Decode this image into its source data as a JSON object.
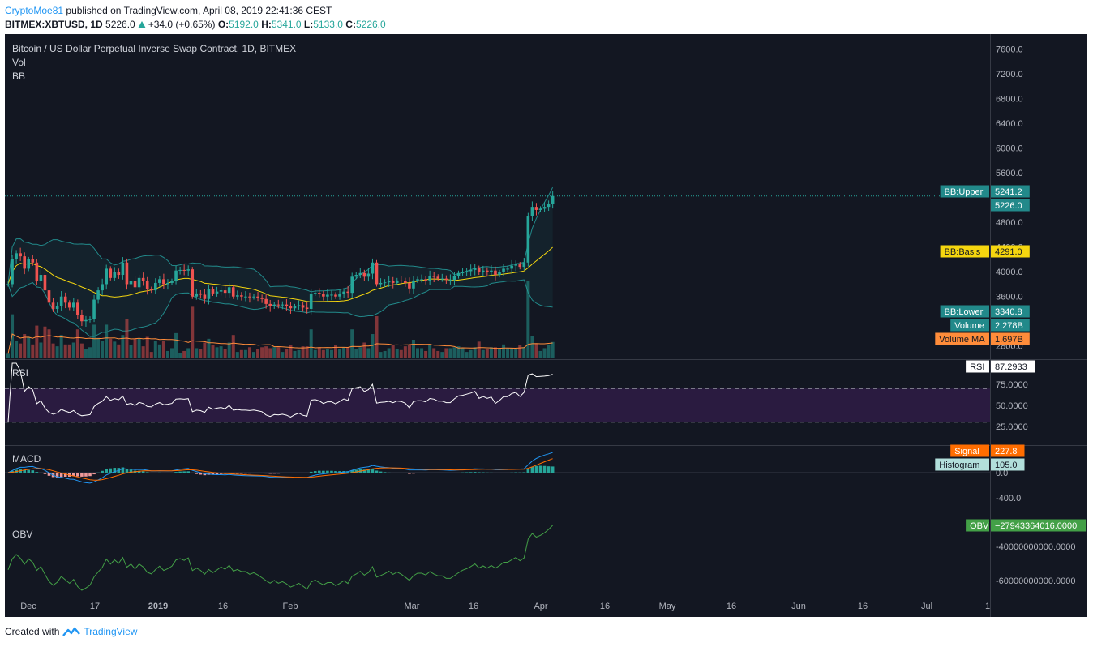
{
  "header": {
    "author": "CryptoMoe81",
    "published_text": "published on TradingView.com, April 08, 2019 22:41:36 CEST",
    "symbol": "BITMEX:XBTUSD, 1D",
    "last": "5226.0",
    "change": "+34.0 (+0.65%)",
    "o_label": "O:",
    "o": "5192.0",
    "h_label": "H:",
    "h": "5341.0",
    "l_label": "L:",
    "l": "5133.0",
    "c_label": "C:",
    "c": "5226.0"
  },
  "legend": {
    "title": "Bitcoin / US Dollar Perpetual Inverse Swap Contract, 1D, BITMEX",
    "vol": "Vol",
    "bb": "BB"
  },
  "panes": {
    "rsi": "RSI",
    "macd": "MACD",
    "obv": "OBV"
  },
  "price_axis": {
    "ticks": [
      "7600.0",
      "7200.0",
      "6800.0",
      "6400.0",
      "6000.0",
      "5600.0",
      "4800.0",
      "4400.0",
      "4000.0",
      "3600.0",
      "2800.0"
    ]
  },
  "rsi_axis": {
    "ticks": [
      "75.0000",
      "50.0000",
      "25.0000"
    ]
  },
  "macd_axis": {
    "ticks": [
      "0.0",
      "-400.0"
    ]
  },
  "obv_axis": {
    "ticks": [
      "-40000000000.0000",
      "-60000000000.0000"
    ]
  },
  "time_axis": {
    "ticks": [
      "Dec",
      "17",
      "2019",
      "16",
      "Feb",
      "Mar",
      "16",
      "Apr",
      "16",
      "May",
      "16",
      "Jun",
      "16",
      "Jul",
      "1"
    ]
  },
  "badges": {
    "bb_upper_label": "BB:Upper",
    "bb_upper": "5241.2",
    "last_price": "5226.0",
    "bb_basis_label": "BB:Basis",
    "bb_basis": "4291.0",
    "bb_lower_label": "BB:Lower",
    "bb_lower": "3340.8",
    "volume_label": "Volume",
    "volume": "2.278B",
    "volume_ma_label": "Volume MA",
    "volume_ma": "1.697B",
    "rsi_label": "RSI",
    "rsi": "87.2933",
    "signal_label": "Signal",
    "signal": "227.8",
    "histogram_label": "Histogram",
    "histogram": "105.0",
    "obv_label": "OBV",
    "obv": "−27943364016.0000"
  },
  "footer": {
    "created_with": "Created with",
    "brand": "TradingView"
  },
  "colors": {
    "background": "#131722",
    "up": "#26a69a",
    "down": "#ef5350",
    "bb_band": "#22898a",
    "bb_basis": "#f5d60f",
    "volume_ma": "#ff8c3a",
    "rsi_line": "#ffffff",
    "rsi_band": "#2a1b40",
    "macd_line": "#2196f3",
    "signal_line": "#ff6d00",
    "obv_line": "#43a047"
  },
  "chart_data": {
    "type": "candlestick",
    "symbol": "BITMEX:XBTUSD",
    "interval": "1D",
    "dates": [
      "2018-11-26",
      "2018-11-27",
      "2018-11-28",
      "2018-11-29",
      "2018-11-30",
      "2018-12-01",
      "2018-12-02",
      "2018-12-03",
      "2018-12-04",
      "2018-12-05",
      "2018-12-06",
      "2018-12-07",
      "2018-12-08",
      "2018-12-09",
      "2018-12-10",
      "2018-12-11",
      "2018-12-12",
      "2018-12-13",
      "2018-12-14",
      "2018-12-15",
      "2018-12-16",
      "2018-12-17",
      "2018-12-18",
      "2018-12-19",
      "2018-12-20",
      "2018-12-21",
      "2018-12-22",
      "2018-12-23",
      "2018-12-24",
      "2018-12-25",
      "2018-12-26",
      "2018-12-27",
      "2018-12-28",
      "2018-12-29",
      "2018-12-30",
      "2018-12-31",
      "2019-01-01",
      "2019-01-02",
      "2019-01-03",
      "2019-01-04",
      "2019-01-05",
      "2019-01-06",
      "2019-01-07",
      "2019-01-08",
      "2019-01-09",
      "2019-01-10",
      "2019-01-11",
      "2019-01-12",
      "2019-01-13",
      "2019-01-14",
      "2019-01-15",
      "2019-01-16",
      "2019-01-17",
      "2019-01-18",
      "2019-01-19",
      "2019-01-20",
      "2019-01-21",
      "2019-01-22",
      "2019-01-23",
      "2019-01-24",
      "2019-01-25",
      "2019-01-26",
      "2019-01-27",
      "2019-01-28",
      "2019-01-29",
      "2019-01-30",
      "2019-01-31",
      "2019-02-01",
      "2019-02-02",
      "2019-02-03",
      "2019-02-04",
      "2019-02-05",
      "2019-02-06",
      "2019-02-07",
      "2019-02-08",
      "2019-02-09",
      "2019-02-10",
      "2019-02-11",
      "2019-02-12",
      "2019-02-13",
      "2019-02-14",
      "2019-02-15",
      "2019-02-16",
      "2019-02-17",
      "2019-02-18",
      "2019-02-19",
      "2019-02-20",
      "2019-02-21",
      "2019-02-22",
      "2019-02-23",
      "2019-02-24",
      "2019-02-25",
      "2019-02-26",
      "2019-02-27",
      "2019-02-28",
      "2019-03-01",
      "2019-03-02",
      "2019-03-03",
      "2019-03-04",
      "2019-03-05",
      "2019-03-06",
      "2019-03-07",
      "2019-03-08",
      "2019-03-09",
      "2019-03-10",
      "2019-03-11",
      "2019-03-12",
      "2019-03-13",
      "2019-03-14",
      "2019-03-15",
      "2019-03-16",
      "2019-03-17",
      "2019-03-18",
      "2019-03-19",
      "2019-03-20",
      "2019-03-21",
      "2019-03-22",
      "2019-03-23",
      "2019-03-24",
      "2019-03-25",
      "2019-03-26",
      "2019-03-27",
      "2019-03-28",
      "2019-03-29",
      "2019-03-30",
      "2019-03-31",
      "2019-04-01",
      "2019-04-02",
      "2019-04-03",
      "2019-04-04",
      "2019-04-05",
      "2019-04-06",
      "2019-04-07",
      "2019-04-08"
    ],
    "close": [
      3800,
      4200,
      4300,
      4250,
      4050,
      4200,
      4150,
      3850,
      3950,
      3700,
      3500,
      3400,
      3450,
      3600,
      3500,
      3420,
      3500,
      3300,
      3200,
      3220,
      3240,
      3550,
      3700,
      3800,
      4050,
      3900,
      4000,
      3950,
      4150,
      3800,
      3850,
      3750,
      3900,
      3850,
      3720,
      3700,
      3820,
      3880,
      3800,
      3820,
      3850,
      4020,
      4030,
      4020,
      4040,
      3600,
      3650,
      3630,
      3560,
      3720,
      3650,
      3680,
      3700,
      3660,
      3750,
      3600,
      3620,
      3600,
      3600,
      3590,
      3600,
      3580,
      3560,
      3480,
      3440,
      3470,
      3460,
      3470,
      3450,
      3410,
      3440,
      3460,
      3420,
      3400,
      3650,
      3660,
      3640,
      3600,
      3630,
      3630,
      3600,
      3640,
      3680,
      3660,
      3920,
      3950,
      3980,
      3920,
      3970,
      4150,
      3800,
      3820,
      3830,
      3850,
      3820,
      3860,
      3850,
      3820,
      3730,
      3860,
      3880,
      3880,
      3860,
      3930,
      3920,
      3890,
      3890,
      3870,
      3870,
      3930,
      3980,
      3990,
      4010,
      4030,
      4060,
      3990,
      4020,
      4000,
      4020,
      3950,
      3990,
      4050,
      4050,
      4100,
      4120,
      4080,
      4150,
      4900,
      5050,
      5000,
      5020,
      5050,
      5100,
      5226
    ],
    "volume_shown": "2.278B",
    "bollinger_bands": {
      "upper_last": 5241.2,
      "basis_last": 4291.0,
      "lower_last": 3340.8
    },
    "volume_ma_last": "1.697B",
    "rsi_last": 87.2933,
    "rsi_levels": [
      70,
      30
    ],
    "macd": {
      "signal_last": 227.8,
      "histogram_last": 105.0
    },
    "obv_last": -27943364016.0,
    "y_range_price": [
      2600,
      7700
    ]
  }
}
